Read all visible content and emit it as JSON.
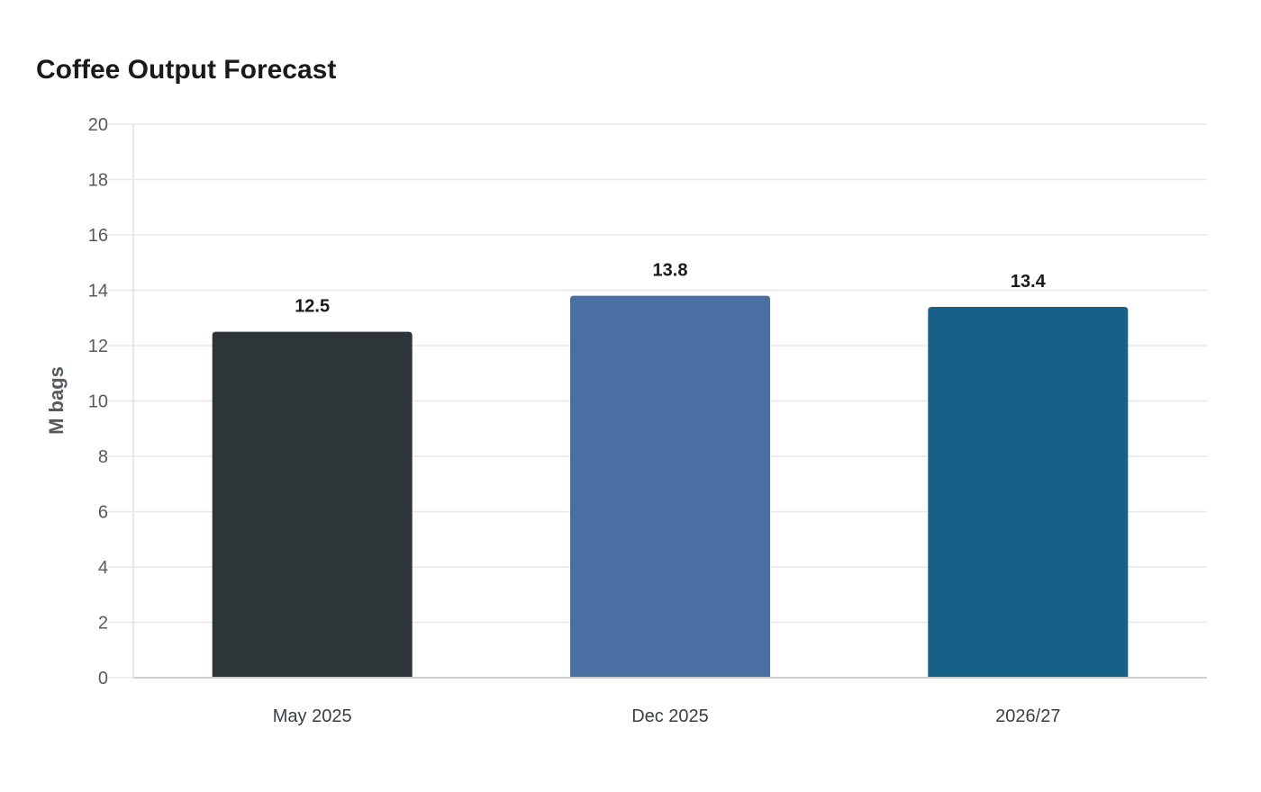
{
  "chart_data": {
    "type": "bar",
    "title": "Coffee Output Forecast",
    "xlabel": "",
    "ylabel": "M bags",
    "categories": [
      "May 2025",
      "Dec 2025",
      "2026/27"
    ],
    "values": [
      12.5,
      13.8,
      13.4
    ],
    "data_labels": [
      "12.5",
      "13.8",
      "13.4"
    ],
    "bar_colors": [
      "#2e3538",
      "#4a6fa3",
      "#176189"
    ],
    "ylim": [
      0,
      20
    ],
    "yticks": [
      0,
      2,
      4,
      6,
      8,
      10,
      12,
      14,
      16,
      18,
      20
    ],
    "ytick_labels": [
      "0",
      "2",
      "4",
      "6",
      "8",
      "10",
      "12",
      "14",
      "16",
      "18",
      "20"
    ],
    "grid": true,
    "legend": "none"
  }
}
